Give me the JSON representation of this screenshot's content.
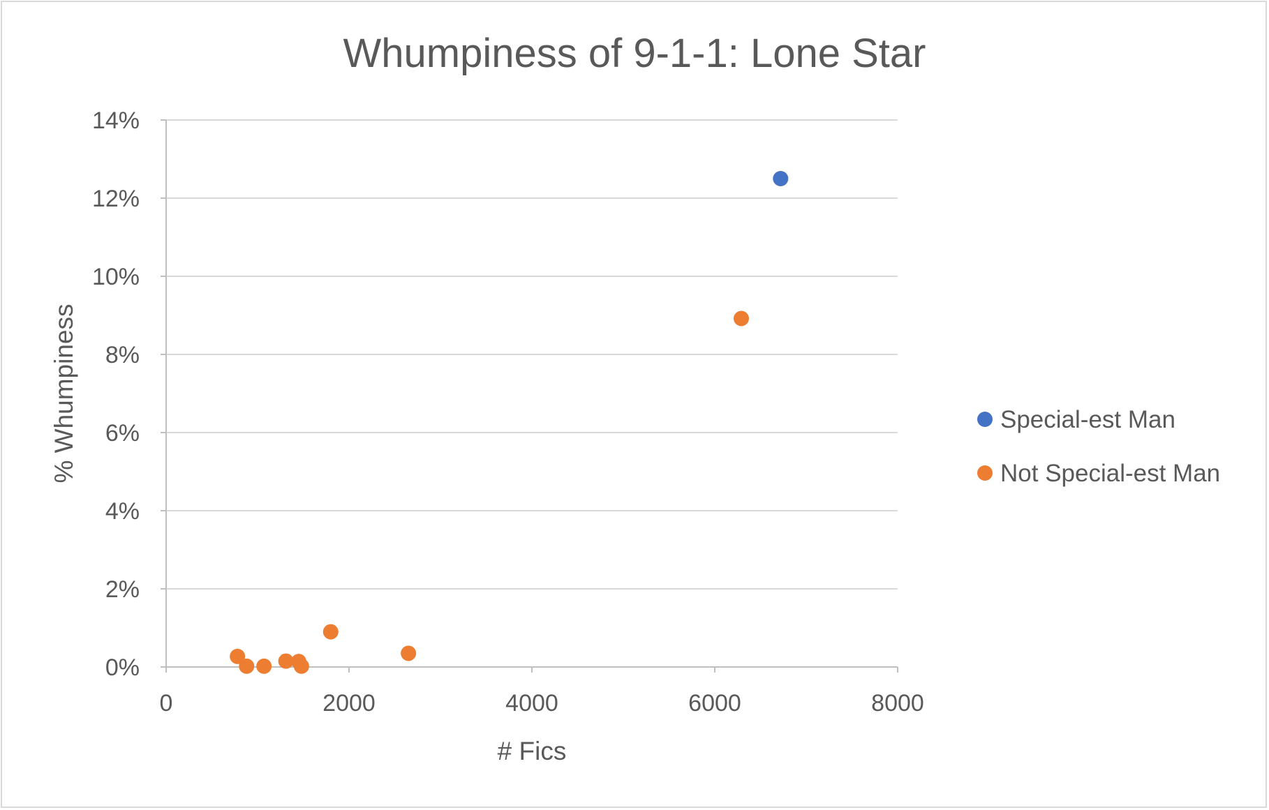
{
  "chart_data": {
    "type": "scatter",
    "title": "Whumpiness of 9-1-1: Lone Star",
    "xlabel": "# Fics",
    "ylabel": "% Whumpiness",
    "xlim": [
      0,
      8000
    ],
    "ylim": [
      0,
      14
    ],
    "x_ticks": [
      0,
      2000,
      4000,
      6000,
      8000
    ],
    "y_ticks": [
      0,
      2,
      4,
      6,
      8,
      10,
      12,
      14
    ],
    "x_tick_labels": [
      "0",
      "2000",
      "4000",
      "6000",
      "8000"
    ],
    "y_tick_labels": [
      "0%",
      "2%",
      "4%",
      "6%",
      "8%",
      "10%",
      "12%",
      "14%"
    ],
    "grid": "horizontal",
    "legend_position": "right",
    "series": [
      {
        "name": "Special-est Man",
        "color": "#4472c4",
        "points": [
          {
            "x": 6720,
            "y": 12.5
          }
        ]
      },
      {
        "name": "Not Special-est Man",
        "color": "#ed7d31",
        "points": [
          {
            "x": 780,
            "y": 0.27
          },
          {
            "x": 880,
            "y": 0.02
          },
          {
            "x": 1070,
            "y": 0.02
          },
          {
            "x": 1310,
            "y": 0.15
          },
          {
            "x": 1450,
            "y": 0.14
          },
          {
            "x": 1480,
            "y": 0.02
          },
          {
            "x": 1800,
            "y": 0.9
          },
          {
            "x": 2650,
            "y": 0.35
          },
          {
            "x": 6290,
            "y": 8.92
          }
        ]
      }
    ]
  }
}
